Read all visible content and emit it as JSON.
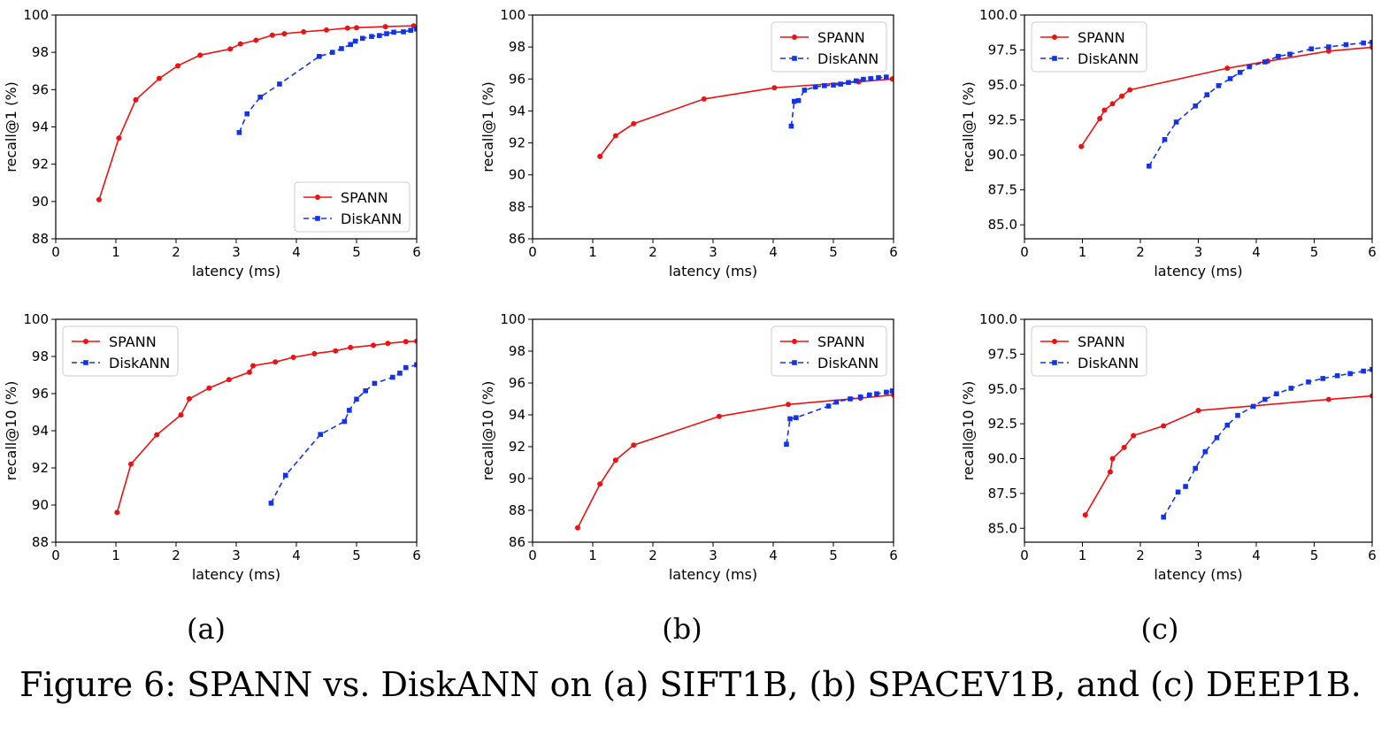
{
  "caption": "Figure 6: SPANN vs. DiskANN on (a) SIFT1B, (b) SPACEV1B, and (c) DEEP1B.",
  "subfigure_labels": [
    "(a)",
    "(b)",
    "(c)"
  ],
  "colors": {
    "SPANN": "#ee1111",
    "DiskANN": "#1133ee"
  },
  "chart_data": [
    {
      "type": "line",
      "xlabel": "latency (ms)",
      "ylabel": "recall@1 (%)",
      "xlim": [
        0,
        6
      ],
      "ylim": [
        88,
        100
      ],
      "xticks": [
        0,
        1,
        2,
        3,
        4,
        5,
        6
      ],
      "xtick_labels": [
        "0",
        "1",
        "2",
        "3",
        "4",
        "5",
        "6"
      ],
      "yticks": [
        88,
        90,
        92,
        94,
        96,
        98,
        100
      ],
      "ytick_labels": [
        "88",
        "90",
        "92",
        "94",
        "96",
        "98",
        "100"
      ],
      "legend": "lower-right",
      "series": [
        {
          "name": "SPANN",
          "style": "solid-circle",
          "x": [
            0.72,
            1.05,
            1.33,
            1.72,
            2.03,
            2.4,
            2.9,
            3.07,
            3.33,
            3.6,
            3.8,
            4.12,
            4.5,
            4.85,
            5.0,
            5.48,
            5.95
          ],
          "y": [
            90.1,
            93.4,
            95.45,
            96.6,
            97.28,
            97.85,
            98.18,
            98.45,
            98.65,
            98.92,
            99.0,
            99.1,
            99.2,
            99.3,
            99.32,
            99.38,
            99.42
          ]
        },
        {
          "name": "DiskANN",
          "style": "dashed-square",
          "x": [
            3.05,
            3.18,
            3.4,
            3.72,
            4.38,
            4.6,
            4.75,
            4.9,
            4.98,
            5.1,
            5.25,
            5.38,
            5.5,
            5.62,
            5.78,
            5.9,
            6.0
          ],
          "y": [
            93.7,
            94.7,
            95.6,
            96.3,
            97.78,
            98.0,
            98.2,
            98.42,
            98.6,
            98.75,
            98.85,
            98.9,
            99.0,
            99.08,
            99.1,
            99.18,
            99.25
          ]
        }
      ]
    },
    {
      "type": "line",
      "xlabel": "latency (ms)",
      "ylabel": "recall@1 (%)",
      "xlim": [
        0,
        6
      ],
      "ylim": [
        86,
        100
      ],
      "xticks": [
        0,
        1,
        2,
        3,
        4,
        5,
        6
      ],
      "xtick_labels": [
        "0",
        "1",
        "2",
        "3",
        "4",
        "5",
        "6"
      ],
      "yticks": [
        86,
        88,
        90,
        92,
        94,
        96,
        98,
        100
      ],
      "ytick_labels": [
        "86",
        "88",
        "90",
        "92",
        "94",
        "96",
        "98",
        "100"
      ],
      "legend": "upper-right",
      "series": [
        {
          "name": "SPANN",
          "style": "solid-circle",
          "x": [
            1.12,
            1.38,
            1.68,
            2.85,
            4.02,
            5.42,
            5.98
          ],
          "y": [
            91.15,
            92.45,
            93.2,
            94.75,
            95.45,
            95.82,
            96.0
          ]
        },
        {
          "name": "DiskANN",
          "style": "dashed-square",
          "x": [
            4.3,
            4.35,
            4.42,
            4.52,
            4.7,
            4.85,
            5.0,
            5.12,
            5.25,
            5.38,
            5.5,
            5.62,
            5.75,
            5.88
          ],
          "y": [
            93.05,
            94.6,
            94.65,
            95.3,
            95.5,
            95.58,
            95.62,
            95.68,
            95.78,
            95.88,
            95.98,
            96.02,
            96.08,
            96.12
          ]
        }
      ]
    },
    {
      "type": "line",
      "xlabel": "latency (ms)",
      "ylabel": "recall@1 (%)",
      "xlim": [
        0,
        6
      ],
      "ylim": [
        84,
        100
      ],
      "xticks": [
        0,
        1,
        2,
        3,
        4,
        5,
        6
      ],
      "xtick_labels": [
        "0",
        "1",
        "2",
        "3",
        "4",
        "5",
        "6"
      ],
      "yticks": [
        85,
        87.5,
        90,
        92.5,
        95,
        97.5,
        100
      ],
      "ytick_labels": [
        "85.0",
        "87.5",
        "90.0",
        "92.5",
        "95.0",
        "97.5",
        "100.0"
      ],
      "legend": "upper-left",
      "series": [
        {
          "name": "SPANN",
          "style": "solid-circle",
          "x": [
            0.98,
            1.3,
            1.38,
            1.52,
            1.68,
            1.82,
            3.5,
            4.2,
            5.25,
            6.0
          ],
          "y": [
            90.6,
            92.6,
            93.2,
            93.65,
            94.2,
            94.65,
            96.2,
            96.7,
            97.42,
            97.7
          ]
        },
        {
          "name": "DiskANN",
          "style": "dashed-square",
          "x": [
            2.15,
            2.42,
            2.62,
            2.95,
            3.15,
            3.35,
            3.55,
            3.72,
            3.88,
            4.15,
            4.38,
            4.58,
            4.95,
            5.25,
            5.55,
            5.85,
            6.0
          ],
          "y": [
            89.2,
            91.1,
            92.35,
            93.5,
            94.3,
            94.95,
            95.45,
            95.9,
            96.3,
            96.65,
            97.05,
            97.2,
            97.58,
            97.72,
            97.88,
            98.0,
            98.05
          ]
        }
      ]
    },
    {
      "type": "line",
      "xlabel": "latency (ms)",
      "ylabel": "recall@10 (%)",
      "xlim": [
        0,
        6
      ],
      "ylim": [
        88,
        100
      ],
      "xticks": [
        0,
        1,
        2,
        3,
        4,
        5,
        6
      ],
      "xtick_labels": [
        "0",
        "1",
        "2",
        "3",
        "4",
        "5",
        "6"
      ],
      "yticks": [
        88,
        90,
        92,
        94,
        96,
        98,
        100
      ],
      "ytick_labels": [
        "88",
        "90",
        "92",
        "94",
        "96",
        "98",
        "100"
      ],
      "legend": "upper-left",
      "series": [
        {
          "name": "SPANN",
          "style": "solid-circle",
          "x": [
            1.02,
            1.25,
            1.68,
            2.08,
            2.22,
            2.55,
            2.88,
            3.22,
            3.28,
            3.65,
            3.95,
            4.3,
            4.65,
            4.9,
            5.28,
            5.52,
            5.82,
            6.0
          ],
          "y": [
            89.6,
            92.2,
            93.78,
            94.85,
            95.72,
            96.3,
            96.75,
            97.15,
            97.5,
            97.7,
            97.95,
            98.15,
            98.3,
            98.48,
            98.6,
            98.7,
            98.8,
            98.82
          ]
        },
        {
          "name": "DiskANN",
          "style": "dashed-square",
          "x": [
            3.58,
            3.82,
            4.4,
            4.8,
            4.88,
            5.0,
            5.15,
            5.3,
            5.6,
            5.72,
            5.82,
            6.0
          ],
          "y": [
            90.1,
            91.6,
            93.8,
            94.5,
            95.1,
            95.7,
            96.15,
            96.55,
            96.88,
            97.1,
            97.4,
            97.55
          ]
        }
      ]
    },
    {
      "type": "line",
      "xlabel": "latency (ms)",
      "ylabel": "recall@10 (%)",
      "xlim": [
        0,
        6
      ],
      "ylim": [
        86,
        100
      ],
      "xticks": [
        0,
        1,
        2,
        3,
        4,
        5,
        6
      ],
      "xtick_labels": [
        "0",
        "1",
        "2",
        "3",
        "4",
        "5",
        "6"
      ],
      "yticks": [
        86,
        88,
        90,
        92,
        94,
        96,
        98,
        100
      ],
      "ytick_labels": [
        "86",
        "88",
        "90",
        "92",
        "94",
        "96",
        "98",
        "100"
      ],
      "legend": "upper-right",
      "series": [
        {
          "name": "SPANN",
          "style": "solid-circle",
          "x": [
            0.75,
            1.12,
            1.38,
            1.68,
            3.1,
            4.25,
            5.45,
            6.0
          ],
          "y": [
            86.9,
            89.65,
            91.15,
            92.1,
            93.9,
            94.65,
            95.05,
            95.25
          ]
        },
        {
          "name": "DiskANN",
          "style": "dashed-square",
          "x": [
            4.22,
            4.28,
            4.38,
            4.92,
            5.05,
            5.28,
            5.45,
            5.6,
            5.72,
            5.88,
            5.98
          ],
          "y": [
            92.15,
            93.75,
            93.82,
            94.55,
            94.8,
            95.0,
            95.12,
            95.25,
            95.32,
            95.42,
            95.5
          ]
        }
      ]
    },
    {
      "type": "line",
      "xlabel": "latency (ms)",
      "ylabel": "recall@10 (%)",
      "xlim": [
        0,
        6
      ],
      "ylim": [
        84,
        100
      ],
      "xticks": [
        0,
        1,
        2,
        3,
        4,
        5,
        6
      ],
      "xtick_labels": [
        "0",
        "1",
        "2",
        "3",
        "4",
        "5",
        "6"
      ],
      "yticks": [
        85,
        87.5,
        90,
        92.5,
        95,
        97.5,
        100
      ],
      "ytick_labels": [
        "85.0",
        "87.5",
        "90.0",
        "92.5",
        "95.0",
        "97.5",
        "100.0"
      ],
      "legend": "upper-left",
      "series": [
        {
          "name": "SPANN",
          "style": "solid-circle",
          "x": [
            1.05,
            1.48,
            1.52,
            1.72,
            1.88,
            2.4,
            3.0,
            5.25,
            6.0
          ],
          "y": [
            85.95,
            89.05,
            90.0,
            90.8,
            91.65,
            92.35,
            93.45,
            94.25,
            94.5
          ]
        },
        {
          "name": "DiskANN",
          "style": "dashed-square",
          "x": [
            2.4,
            2.65,
            2.78,
            2.95,
            3.12,
            3.32,
            3.5,
            3.68,
            3.95,
            4.15,
            4.35,
            4.6,
            4.9,
            5.15,
            5.4,
            5.62,
            5.85,
            6.0
          ],
          "y": [
            85.8,
            87.6,
            88.0,
            89.3,
            90.5,
            91.5,
            92.4,
            93.1,
            93.75,
            94.25,
            94.65,
            95.05,
            95.5,
            95.75,
            95.95,
            96.1,
            96.28,
            96.4
          ]
        }
      ]
    }
  ]
}
